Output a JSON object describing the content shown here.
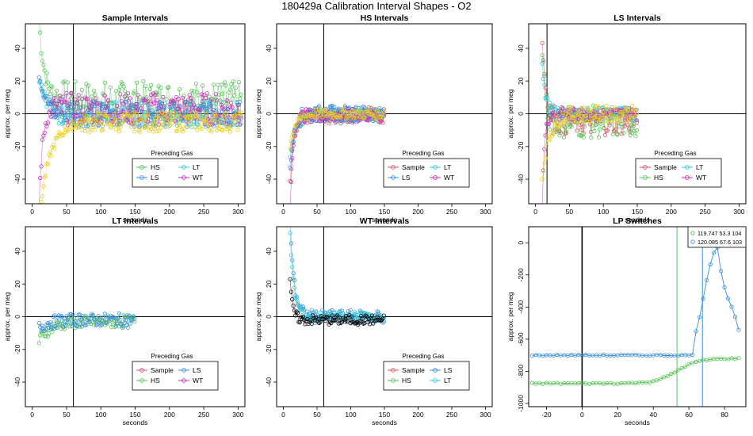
{
  "figure": {
    "title": "180429a   Calibration Interval Shapes - O2"
  },
  "colors": {
    "Sample": "#e0506a",
    "HS": "#5ac35a",
    "LS": "#3a8ed8",
    "LT": "#33c9d6",
    "WT": "#c436b6",
    "Yellow": "#e8d020",
    "Black": "#000000",
    "Grey": "#888888"
  },
  "chart_data": [
    {
      "type": "scatter",
      "title": "Sample Intervals",
      "xlabel": "seconds",
      "ylabel": "approx. per meg",
      "xlim": [
        -10,
        310
      ],
      "ylim": [
        -55,
        55
      ],
      "xticks": [
        0,
        50,
        100,
        150,
        200,
        250,
        300
      ],
      "yticks": [
        -40,
        -20,
        0,
        20,
        40
      ],
      "vline": 60,
      "hline": 0,
      "legend": {
        "title": "Preceding Gas",
        "position": "bottom-center",
        "entries": [
          "HS",
          "LT",
          "LS",
          "WT"
        ]
      },
      "series": [
        {
          "name": "HS",
          "color_key": "HS",
          "xmax": 305,
          "settle": 20,
          "spread": 12,
          "level": 8,
          "spike": {
            "start": 50,
            "decay": 8
          }
        },
        {
          "name": "LT",
          "color_key": "LT",
          "xmax": 305,
          "settle": 20,
          "spread": 8,
          "level": 0,
          "spike": {
            "start": 20,
            "decay": 12
          }
        },
        {
          "name": "LS",
          "color_key": "LS",
          "xmax": 305,
          "settle": 20,
          "spread": 8,
          "level": 0,
          "spike": {
            "start": 25,
            "decay": 10
          }
        },
        {
          "name": "WT",
          "color_key": "WT",
          "xmax": 305,
          "settle": 20,
          "spread": 10,
          "level": 3,
          "spike": {
            "start": -60,
            "decay": 5
          }
        },
        {
          "name": "Yellow",
          "color_key": "Yellow",
          "xmax": 305,
          "settle": 60,
          "spread": 6,
          "level": -5,
          "spike": {
            "start": -60,
            "decay": 15
          }
        }
      ]
    },
    {
      "type": "scatter",
      "title": "HS Intervals",
      "xlabel": "seconds",
      "ylabel": "approx. per meg",
      "xlim": [
        -10,
        310
      ],
      "ylim": [
        -55,
        55
      ],
      "xticks": [
        0,
        50,
        100,
        150,
        200,
        250,
        300
      ],
      "yticks": [
        -40,
        -20,
        0,
        20,
        40
      ],
      "vline": 60,
      "hline": 0,
      "legend": {
        "title": "Preceding Gas",
        "position": "bottom-center",
        "entries": [
          "Sample",
          "LT",
          "LS",
          "WT"
        ]
      },
      "series": [
        {
          "name": "Sample",
          "color_key": "Sample",
          "xmax": 150,
          "settle": 15,
          "spread": 5,
          "level": -1,
          "spike": {
            "start": -40,
            "decay": 6
          }
        },
        {
          "name": "LT",
          "color_key": "LT",
          "xmax": 150,
          "settle": 15,
          "spread": 4,
          "level": 0,
          "spike": {
            "start": -25,
            "decay": 8
          }
        },
        {
          "name": "LS",
          "color_key": "LS",
          "xmax": 150,
          "settle": 15,
          "spread": 5,
          "level": 0,
          "spike": {
            "start": -35,
            "decay": 6
          }
        },
        {
          "name": "WT",
          "color_key": "WT",
          "xmax": 150,
          "settle": 15,
          "spread": 4,
          "level": -1,
          "spike": {
            "start": -60,
            "decay": 4
          }
        },
        {
          "name": "Yellow",
          "color_key": "Yellow",
          "xmax": 150,
          "settle": 15,
          "spread": 3,
          "level": 0,
          "spike": {
            "start": -20,
            "decay": 8
          }
        }
      ]
    },
    {
      "type": "scatter",
      "title": "LS Intervals",
      "xlabel": "seconds",
      "ylabel": "approx. per meg",
      "xlim": [
        -10,
        310
      ],
      "ylim": [
        -55,
        55
      ],
      "xticks": [
        0,
        50,
        100,
        150,
        200,
        250,
        300
      ],
      "yticks": [
        -40,
        -20,
        0,
        20,
        40
      ],
      "vline": 17,
      "hline": 0,
      "legend": {
        "title": "Preceding Gas",
        "position": "bottom-center",
        "entries": [
          "Sample",
          "LT",
          "HS",
          "WT"
        ]
      },
      "series": [
        {
          "name": "Sample",
          "color_key": "Sample",
          "xmax": 150,
          "settle": 10,
          "spread": 8,
          "level": -5,
          "spike": {
            "start": 50,
            "decay": 6
          }
        },
        {
          "name": "HS",
          "color_key": "HS",
          "xmax": 150,
          "settle": 10,
          "spread": 10,
          "level": -5,
          "spike": {
            "start": 45,
            "decay": 5
          }
        },
        {
          "name": "LT",
          "color_key": "LT",
          "xmax": 150,
          "settle": 10,
          "spread": 4,
          "level": 0,
          "spike": {
            "start": 30,
            "decay": 5
          }
        },
        {
          "name": "WT",
          "color_key": "WT",
          "xmax": 150,
          "settle": 10,
          "spread": 4,
          "level": 0,
          "spike": {
            "start": -60,
            "decay": 3
          }
        },
        {
          "name": "Yellow",
          "color_key": "Yellow",
          "xmax": 150,
          "settle": 10,
          "spread": 5,
          "level": 0,
          "spike": {
            "start": -40,
            "decay": 10
          }
        }
      ]
    },
    {
      "type": "scatter",
      "title": "LT Intervals",
      "xlabel": "seconds",
      "ylabel": "approx. per meg",
      "xlim": [
        -10,
        310
      ],
      "ylim": [
        -55,
        55
      ],
      "xticks": [
        0,
        50,
        100,
        150,
        200,
        250,
        300
      ],
      "yticks": [
        -40,
        -20,
        0,
        20,
        40
      ],
      "vline": 60,
      "hline": 0,
      "legend": {
        "title": "Preceding Gas",
        "position": "bottom-center",
        "entries": [
          "Sample",
          "LS",
          "HS",
          "WT"
        ]
      },
      "series": [
        {
          "name": "HS",
          "color_key": "HS",
          "xmax": 150,
          "settle": 0,
          "spread": 4,
          "level": -3,
          "spike": {
            "start": -12,
            "decay": 15
          }
        },
        {
          "name": "LS",
          "color_key": "LS",
          "xmax": 150,
          "settle": 0,
          "spread": 4,
          "level": -2,
          "spike": {
            "start": -5,
            "decay": 15
          }
        }
      ]
    },
    {
      "type": "scatter",
      "title": "WT Intervals",
      "xlabel": "seconds",
      "ylabel": "approx. per meg",
      "xlim": [
        -10,
        310
      ],
      "ylim": [
        -55,
        55
      ],
      "xticks": [
        0,
        50,
        100,
        150,
        200,
        250,
        300
      ],
      "yticks": [
        -40,
        -20,
        0,
        20,
        40
      ],
      "vline": 60,
      "hline": 0,
      "legend": {
        "title": "Preceding Gas",
        "position": "bottom-center",
        "entries": [
          "Sample",
          "LS",
          "HS",
          "LT"
        ]
      },
      "series": [
        {
          "name": "LS",
          "color_key": "LS",
          "xmax": 150,
          "settle": 10,
          "spread": 4,
          "level": 0,
          "spike": {
            "start": 60,
            "decay": 6
          }
        },
        {
          "name": "LT",
          "color_key": "LT",
          "xmax": 150,
          "settle": 10,
          "spread": 3,
          "level": 0,
          "spike": {
            "start": 50,
            "decay": 6
          }
        },
        {
          "name": "Black",
          "color_key": "Black",
          "xmax": 150,
          "settle": 10,
          "spread": 3,
          "level": -2,
          "spike": {
            "start": 25,
            "decay": 4
          }
        }
      ]
    },
    {
      "type": "scatter",
      "title": "LP Switches",
      "xlabel": "seconds",
      "ylabel": "approx. per meg",
      "xlim": [
        -30,
        92
      ],
      "ylim": [
        -1020,
        100
      ],
      "xticks": [
        -20,
        0,
        20,
        40,
        60,
        80
      ],
      "yticks": [
        -1000,
        -800,
        -600,
        -400,
        -200,
        0
      ],
      "vline_black": 0,
      "vlines": [
        {
          "x": 53.3,
          "color_key": "HS"
        },
        {
          "x": 67.6,
          "color_key": "LS"
        }
      ],
      "legend": {
        "position": "top-right",
        "entries": [
          {
            "label": "119.747 53.3 104",
            "color_key": "HS"
          },
          {
            "label": "120.085 67.6 103",
            "color_key": "LS"
          }
        ]
      },
      "series": [
        {
          "name": "119.747 53.3 104",
          "color_key": "HS",
          "x_start": -28,
          "x_end": 88,
          "step": 2,
          "base": -875,
          "step_at": 53.3,
          "end_level": -720
        },
        {
          "name": "120.085 67.6 103",
          "color_key": "LS",
          "x_start": -28,
          "x_end": 88,
          "step": 2,
          "base": -700,
          "peak_x": 76,
          "peak_y": -30,
          "end_level": -530
        }
      ]
    }
  ]
}
